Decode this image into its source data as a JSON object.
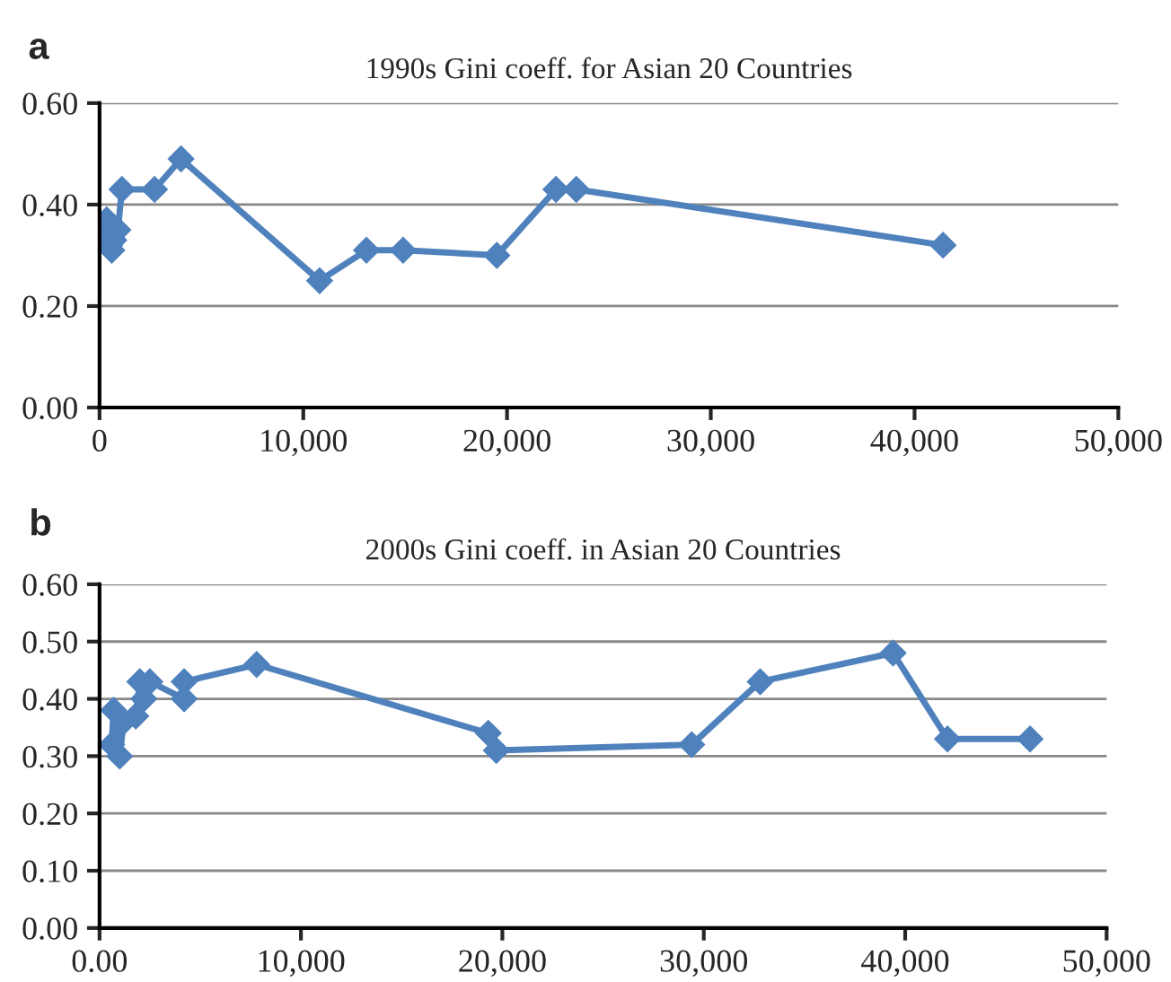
{
  "chart_data": [
    {
      "type": "line",
      "title": "1990s Gini coeff. for Asian 20 Countries",
      "annotations": [
        "a"
      ],
      "marker": "diamond",
      "grid": "y",
      "xlim": [
        0,
        50000
      ],
      "xticks": [
        {
          "value": 0,
          "label": "0"
        },
        {
          "value": 10000,
          "label": "10,000"
        },
        {
          "value": 20000,
          "label": "20,000"
        },
        {
          "value": 30000,
          "label": "30,000"
        },
        {
          "value": 40000,
          "label": "40,000"
        },
        {
          "value": 50000,
          "label": "50,000"
        }
      ],
      "ylim": [
        0,
        0.6
      ],
      "yticks": [
        {
          "value": 0,
          "label": "0.00"
        },
        {
          "value": 0.2,
          "label": "0.20"
        },
        {
          "value": 0.4,
          "label": "0.40"
        },
        {
          "value": 0.6,
          "label": "0.60"
        }
      ],
      "series": [
        {
          "color": "#4f81bd",
          "x": [
            200,
            300,
            350,
            400,
            450,
            500,
            550,
            600,
            700,
            900,
            1100,
            2700,
            4000,
            10800,
            13100,
            14900,
            19500,
            22400,
            23400,
            41400
          ],
          "values": [
            0.35,
            null,
            0.37,
            0.36,
            0.34,
            0.32,
            null,
            0.31,
            0.33,
            0.35,
            0.43,
            0.43,
            0.49,
            0.25,
            0.31,
            0.31,
            0.3,
            0.43,
            0.43,
            0.32
          ]
        }
      ]
    },
    {
      "type": "line",
      "title": "2000s Gini coeff. in Asian 20 Countries",
      "annotations": [
        "b"
      ],
      "marker": "diamond",
      "grid": "y",
      "xlim": [
        0,
        50000
      ],
      "xticks": [
        {
          "value": 0,
          "label": "0.00"
        },
        {
          "value": 10000,
          "label": "10,000"
        },
        {
          "value": 20000,
          "label": "20,000"
        },
        {
          "value": 30000,
          "label": "30,000"
        },
        {
          "value": 40000,
          "label": "40,000"
        },
        {
          "value": 50000,
          "label": "50,000"
        }
      ],
      "ylim": [
        0,
        0.6
      ],
      "yticks": [
        {
          "value": 0,
          "label": "0.00"
        },
        {
          "value": 0.1,
          "label": "0.10"
        },
        {
          "value": 0.2,
          "label": "0.20"
        },
        {
          "value": 0.3,
          "label": "0.30"
        },
        {
          "value": 0.4,
          "label": "0.40"
        },
        {
          "value": 0.5,
          "label": "0.50"
        },
        {
          "value": 0.6,
          "label": "0.60"
        }
      ],
      "series": [
        {
          "color": "#4f81bd",
          "x": [
            600,
            700,
            1000,
            1200,
            1800,
            2000,
            2200,
            2500,
            4200,
            4200,
            7800,
            19300,
            19700,
            29400,
            32800,
            39400,
            42100,
            46200
          ],
          "values": [
            0.32,
            0.38,
            0.3,
            0.36,
            0.37,
            0.43,
            0.4,
            0.43,
            0.4,
            0.43,
            0.46,
            0.34,
            0.31,
            0.32,
            0.43,
            0.48,
            0.33,
            0.33
          ]
        }
      ]
    }
  ]
}
